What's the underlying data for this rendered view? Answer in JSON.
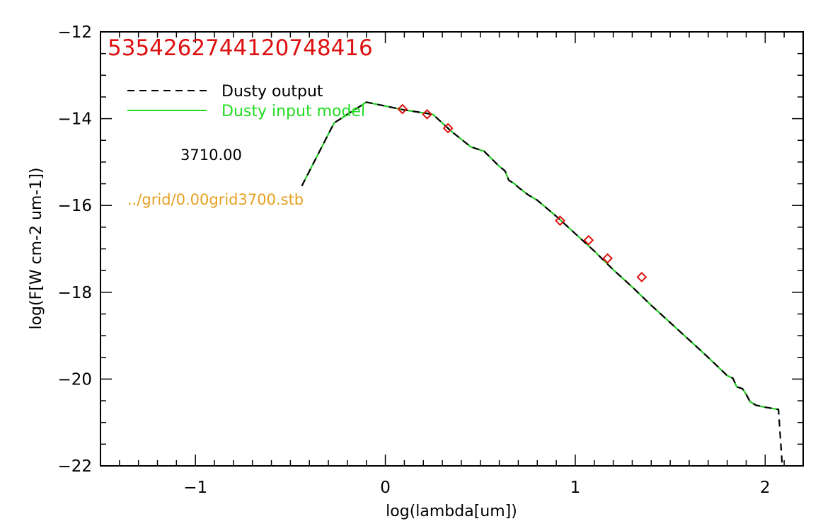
{
  "chart_data": {
    "type": "line",
    "xlabel": "log(lambda[um])",
    "ylabel": "log(F[W cm-2 um-1])",
    "xlim": [
      -1.5,
      2.2
    ],
    "ylim": [
      -22,
      -12
    ],
    "xticks": [
      -1,
      0,
      1,
      2
    ],
    "yticks": [
      -22,
      -20,
      -18,
      -16,
      -14,
      -12
    ],
    "xtick_labels": [
      "−1",
      "0",
      "1",
      "2"
    ],
    "ytick_labels": [
      "−22",
      "−20",
      "−18",
      "−16",
      "−14",
      "−12"
    ],
    "x_minor_step": 0.1,
    "y_minor_step": 0.5,
    "grid": false,
    "legend_position": "top-left",
    "series": [
      {
        "name": "Dusty output",
        "style": "dashed",
        "color": "#000000",
        "x": [
          -0.44,
          -0.27,
          -0.1,
          0.1,
          0.25,
          0.35,
          0.45,
          0.52,
          0.6,
          0.63,
          0.65,
          0.68,
          0.7,
          0.75,
          0.8,
          0.9,
          1.0,
          1.1,
          1.2,
          1.3,
          1.4,
          1.5,
          1.6,
          1.7,
          1.8,
          1.83,
          1.85,
          1.88,
          1.9,
          1.92,
          1.95,
          2.0,
          2.07,
          2.09
        ],
        "y": [
          -15.55,
          -14.1,
          -13.62,
          -13.8,
          -13.9,
          -14.3,
          -14.65,
          -14.75,
          -15.1,
          -15.2,
          -15.42,
          -15.5,
          -15.58,
          -15.75,
          -15.88,
          -16.25,
          -16.65,
          -17.05,
          -17.48,
          -17.88,
          -18.3,
          -18.7,
          -19.1,
          -19.5,
          -19.92,
          -19.98,
          -20.18,
          -20.22,
          -20.35,
          -20.52,
          -20.6,
          -20.65,
          -20.7,
          -22.0
        ]
      },
      {
        "name": "Dusty input model",
        "style": "solid",
        "color": "#22cc22",
        "x": [
          -0.44,
          -0.27,
          -0.1,
          0.1,
          0.25,
          0.35,
          0.45,
          0.52,
          0.6,
          0.63,
          0.65,
          0.68,
          0.7,
          0.75,
          0.8,
          0.9,
          1.0,
          1.1,
          1.2,
          1.3,
          1.4,
          1.5,
          1.6,
          1.7,
          1.8,
          1.83,
          1.85,
          1.88,
          1.9,
          1.92,
          1.95,
          2.0,
          2.07
        ],
        "y": [
          -15.55,
          -14.1,
          -13.62,
          -13.8,
          -13.9,
          -14.3,
          -14.65,
          -14.75,
          -15.1,
          -15.2,
          -15.42,
          -15.5,
          -15.58,
          -15.75,
          -15.88,
          -16.25,
          -16.65,
          -17.05,
          -17.48,
          -17.88,
          -18.3,
          -18.7,
          -19.1,
          -19.5,
          -19.92,
          -19.98,
          -20.18,
          -20.22,
          -20.35,
          -20.52,
          -20.6,
          -20.65,
          -20.7
        ]
      },
      {
        "name": "",
        "style": "markers",
        "marker": "diamond",
        "color": "#dd1111",
        "x": [
          0.09,
          0.22,
          0.33,
          0.92,
          1.07,
          1.17,
          1.35
        ],
        "y": [
          -13.78,
          -13.9,
          -14.22,
          -16.35,
          -16.8,
          -17.22,
          -17.65
        ]
      }
    ],
    "annotations": {
      "id_text": "535426274412074841​6",
      "id_color": "#dd1111",
      "temperature": "3710.00",
      "model_file": "../grid/0.00grid3700.stb",
      "model_file_color": "#e6a020"
    }
  }
}
